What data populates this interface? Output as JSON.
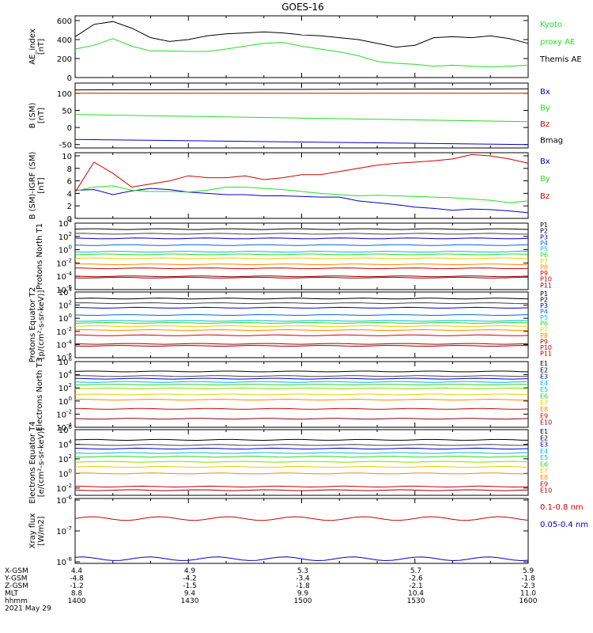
{
  "title": "GOES-16",
  "colors": {
    "black": "#000000",
    "red": "#d00000",
    "green": "#22dd22",
    "blue": "#0000cc",
    "cyan": "#00bbdd",
    "yellow": "#eecc00",
    "orange": "#ff8800",
    "darkred": "#990000"
  },
  "chart_data": [
    {
      "type": "line",
      "panel": "ae",
      "ylabel": "AE_index [nT]",
      "ylim": [
        0,
        650
      ],
      "yticks": [
        {
          "v": 600,
          "label": "600"
        },
        {
          "v": 400,
          "label": "400"
        },
        {
          "v": 200,
          "label": "200"
        },
        {
          "v": 0,
          "label": "0"
        }
      ],
      "x": [
        1400,
        1405,
        1410,
        1415,
        1420,
        1425,
        1430,
        1435,
        1440,
        1445,
        1450,
        1455,
        1500,
        1505,
        1510,
        1515,
        1520,
        1525,
        1530,
        1535,
        1540,
        1545,
        1550,
        1555,
        1600
      ],
      "series": [
        {
          "name": "Kyoto proxy AE",
          "color": "#22dd22",
          "values": [
            300,
            340,
            410,
            330,
            280,
            280,
            275,
            275,
            300,
            330,
            360,
            370,
            330,
            300,
            270,
            230,
            170,
            150,
            140,
            120,
            130,
            120,
            110,
            120,
            130
          ]
        },
        {
          "name": "Themis AE",
          "color": "#000000",
          "values": [
            430,
            560,
            590,
            520,
            420,
            380,
            400,
            440,
            460,
            470,
            480,
            470,
            450,
            440,
            420,
            400,
            360,
            320,
            340,
            420,
            430,
            420,
            440,
            410,
            360
          ]
        }
      ],
      "legend": [
        {
          "text": "Kyoto",
          "color": "#22dd22"
        },
        {
          "text": "proxy AE",
          "color": "#22dd22"
        },
        {
          "text": "Themis AE",
          "color": "#000000"
        }
      ]
    },
    {
      "type": "line",
      "panel": "bsm",
      "ylabel": "B (SM) [nT]",
      "ylim": [
        -60,
        130
      ],
      "yticks": [
        {
          "v": 100,
          "label": "100"
        },
        {
          "v": 50,
          "label": "50"
        },
        {
          "v": 0,
          "label": "0"
        },
        {
          "v": -50,
          "label": "-50"
        }
      ],
      "x": [
        1400,
        1600
      ],
      "series": [
        {
          "name": "Bx",
          "color": "#0000cc",
          "values": [
            -35,
            -50
          ]
        },
        {
          "name": "By",
          "color": "#22dd22",
          "values": [
            38,
            17
          ]
        },
        {
          "name": "Bz",
          "color": "#d00000",
          "values": [
            100,
            100
          ]
        },
        {
          "name": "Bmag",
          "color": "#000000",
          "values": [
            110,
            113
          ]
        }
      ],
      "legend": [
        {
          "text": "Bx",
          "color": "#0000cc"
        },
        {
          "text": "By",
          "color": "#22dd22"
        },
        {
          "text": "Bz",
          "color": "#d00000"
        },
        {
          "text": "Bmag",
          "color": "#000000"
        }
      ]
    },
    {
      "type": "line",
      "panel": "bigrf",
      "ylabel": "B (SM)-IGRF (SM) [nT]",
      "ylim": [
        0,
        10.5
      ],
      "yticks": [
        {
          "v": 10,
          "label": "10"
        },
        {
          "v": 8,
          "label": "8"
        },
        {
          "v": 6,
          "label": "6"
        },
        {
          "v": 4,
          "label": "4"
        },
        {
          "v": 2,
          "label": "2"
        },
        {
          "v": 0,
          "label": "0"
        }
      ],
      "x": [
        1400,
        1405,
        1410,
        1415,
        1420,
        1425,
        1430,
        1435,
        1440,
        1445,
        1450,
        1455,
        1500,
        1505,
        1510,
        1515,
        1520,
        1525,
        1530,
        1535,
        1540,
        1545,
        1550,
        1555,
        1600
      ],
      "series": [
        {
          "name": "Bx",
          "color": "#0000cc",
          "values": [
            4.5,
            4.6,
            3.8,
            4.4,
            4.8,
            4.6,
            4.2,
            4.0,
            3.8,
            3.8,
            3.6,
            3.6,
            3.5,
            3.4,
            3.4,
            2.8,
            2.5,
            2.2,
            1.8,
            1.6,
            1.3,
            1.5,
            1.4,
            1.2,
            0.9
          ]
        },
        {
          "name": "By",
          "color": "#22dd22",
          "values": [
            4.4,
            5.0,
            5.2,
            4.5,
            4.3,
            4.3,
            4.2,
            4.5,
            5.0,
            5.0,
            4.8,
            4.6,
            4.3,
            4.0,
            3.8,
            3.6,
            3.7,
            3.6,
            3.5,
            3.4,
            3.3,
            3.1,
            2.9,
            2.5,
            2.8
          ]
        },
        {
          "name": "Bz",
          "color": "#d00000",
          "values": [
            4.2,
            9.0,
            7.2,
            5.0,
            5.5,
            6.0,
            6.8,
            6.5,
            6.5,
            6.8,
            6.2,
            6.5,
            7.0,
            7.0,
            7.5,
            8.0,
            8.5,
            8.8,
            9.0,
            9.2,
            9.5,
            10.2,
            10.0,
            9.5,
            8.8
          ]
        }
      ],
      "legend": [
        {
          "text": "Bx",
          "color": "#0000cc"
        },
        {
          "text": "By",
          "color": "#22dd22"
        },
        {
          "text": "Bz",
          "color": "#d00000"
        }
      ]
    },
    {
      "type": "line",
      "panel": "protons-north",
      "scale": "log",
      "ylabel": "Protons North T1",
      "ylim": [
        -6,
        4
      ],
      "yticks": [
        {
          "exp": 4
        },
        {
          "exp": 2
        },
        {
          "exp": 0
        },
        {
          "exp": -2
        },
        {
          "exp": -4
        },
        {
          "exp": -6
        }
      ],
      "series": [
        {
          "name": "P1",
          "color": "#000000",
          "log10": 3.1
        },
        {
          "name": "P2",
          "color": "#444444",
          "log10": 2.4
        },
        {
          "name": "P3",
          "color": "#0000cc",
          "log10": 1.7
        },
        {
          "name": "P4",
          "color": "#0066dd",
          "log10": 0.7
        },
        {
          "name": "P5",
          "color": "#00bbdd",
          "log10": -0.3
        },
        {
          "name": "P6",
          "color": "#22dd22",
          "log10": -0.7
        },
        {
          "name": "P7",
          "color": "#eecc00",
          "log10": -1.3
        },
        {
          "name": "P8",
          "color": "#ff8800",
          "log10": -2.2
        },
        {
          "name": "P9",
          "color": "#d00000",
          "log10": -2.8
        },
        {
          "name": "P10",
          "color": "#990000",
          "log10": -4.0
        },
        {
          "name": "P11",
          "color": "#990000",
          "log10": -4.2
        }
      ],
      "legend": [
        {
          "text": "P1",
          "color": "#000000"
        },
        {
          "text": "P2",
          "color": "#000000"
        },
        {
          "text": "P3",
          "color": "#0000cc"
        },
        {
          "text": "P4",
          "color": "#0066dd"
        },
        {
          "text": "P5",
          "color": "#00bbdd"
        },
        {
          "text": "P6",
          "color": "#22dd22"
        },
        {
          "text": "P7",
          "color": "#eecc00"
        },
        {
          "text": "P8",
          "color": "#ff8800"
        },
        {
          "text": "P9",
          "color": "#d00000"
        },
        {
          "text": "P10",
          "color": "#d00000"
        },
        {
          "text": "P11",
          "color": "#990000"
        }
      ]
    },
    {
      "type": "line",
      "panel": "protons-equator",
      "scale": "log",
      "ylabel": "Protons Equator T2 [p/(cm²-s-sr-keV)]",
      "ylim": [
        -6,
        4
      ],
      "yticks": [
        {
          "exp": 4
        },
        {
          "exp": 2
        },
        {
          "exp": 0
        },
        {
          "exp": -2
        },
        {
          "exp": -4
        },
        {
          "exp": -6
        }
      ],
      "series": [
        {
          "name": "P1",
          "color": "#000000",
          "log10": 3.0
        },
        {
          "name": "P2",
          "color": "#444444",
          "log10": 2.3
        },
        {
          "name": "P3",
          "color": "#0000cc",
          "log10": 1.6
        },
        {
          "name": "P4",
          "color": "#0066dd",
          "log10": 0.5
        },
        {
          "name": "P5",
          "color": "#00bbdd",
          "log10": -0.4
        },
        {
          "name": "P6",
          "color": "#22dd22",
          "log10": -0.7
        },
        {
          "name": "P7",
          "color": "#eecc00",
          "log10": -1.2
        },
        {
          "name": "P8",
          "color": "#ff8800",
          "log10": -1.8
        },
        {
          "name": "P9",
          "color": "#d00000",
          "log10": -2.6
        },
        {
          "name": "P10",
          "color": "#990000",
          "log10": -3.9
        },
        {
          "name": "P11",
          "color": "#990000",
          "log10": -4.2
        }
      ],
      "legend": [
        {
          "text": "P1",
          "color": "#000000"
        },
        {
          "text": "P2",
          "color": "#000000"
        },
        {
          "text": "P3",
          "color": "#0000cc"
        },
        {
          "text": "P4",
          "color": "#0066dd"
        },
        {
          "text": "P5",
          "color": "#00bbdd"
        },
        {
          "text": "P6",
          "color": "#22dd22"
        },
        {
          "text": "P7",
          "color": "#eecc00"
        },
        {
          "text": "P8",
          "color": "#ff8800"
        },
        {
          "text": "P9",
          "color": "#d00000"
        },
        {
          "text": "P10",
          "color": "#d00000"
        },
        {
          "text": "P11",
          "color": "#990000"
        }
      ]
    },
    {
      "type": "line",
      "panel": "electrons-north",
      "scale": "log",
      "ylabel": "Electrons North T3",
      "ylim": [
        -4,
        6
      ],
      "yticks": [
        {
          "exp": 6
        },
        {
          "exp": 4
        },
        {
          "exp": 2
        },
        {
          "exp": 0
        },
        {
          "exp": -2
        },
        {
          "exp": -4
        }
      ],
      "series": [
        {
          "name": "E1",
          "color": "#000000",
          "log10": 4.5
        },
        {
          "name": "E2",
          "color": "#444444",
          "log10": 3.8
        },
        {
          "name": "E3",
          "color": "#0000cc",
          "log10": 3.4
        },
        {
          "name": "E4",
          "color": "#00bbdd",
          "log10": 2.9
        },
        {
          "name": "E5",
          "color": "#22dd22",
          "log10": 2.5
        },
        {
          "name": "E6",
          "color": "#88dd00",
          "log10": 1.9
        },
        {
          "name": "E7",
          "color": "#eecc00",
          "log10": 1.0
        },
        {
          "name": "E8",
          "color": "#ff8800",
          "log10": 0.2
        },
        {
          "name": "E9",
          "color": "#d00000",
          "log10": -1.2
        },
        {
          "name": "E10",
          "color": "#990000",
          "log10": -2.7
        }
      ],
      "legend": [
        {
          "text": "E1",
          "color": "#000000"
        },
        {
          "text": "E2",
          "color": "#000000"
        },
        {
          "text": "E3",
          "color": "#0000cc"
        },
        {
          "text": "E4",
          "color": "#00bbdd"
        },
        {
          "text": "E5",
          "color": "#00bbdd"
        },
        {
          "text": "E6",
          "color": "#22dd22"
        },
        {
          "text": "E7",
          "color": "#eecc00"
        },
        {
          "text": "E8",
          "color": "#ff8800"
        },
        {
          "text": "E9",
          "color": "#d00000"
        },
        {
          "text": "E10",
          "color": "#990000"
        }
      ]
    },
    {
      "type": "line",
      "panel": "electrons-equator",
      "scale": "log",
      "ylabel": "Electrons Equator T4 [e/(cm²-s-sr-keV)]",
      "ylim": [
        -3,
        6
      ],
      "yticks": [
        {
          "exp": 6
        },
        {
          "exp": 4
        },
        {
          "exp": 2
        },
        {
          "exp": 0
        },
        {
          "exp": -2
        }
      ],
      "series": [
        {
          "name": "E1",
          "color": "#000000",
          "log10": 4.6
        },
        {
          "name": "E2",
          "color": "#444444",
          "log10": 3.9
        },
        {
          "name": "E3",
          "color": "#0000cc",
          "log10": 3.4
        },
        {
          "name": "E4",
          "color": "#00bbdd",
          "log10": 2.8
        },
        {
          "name": "E5",
          "color": "#22dd22",
          "log10": 2.3
        },
        {
          "name": "E6",
          "color": "#88dd00",
          "log10": 1.6
        },
        {
          "name": "E7",
          "color": "#eecc00",
          "log10": 0.9
        },
        {
          "name": "E8",
          "color": "#ff8800",
          "log10": 0.0
        },
        {
          "name": "E9",
          "color": "#d00000",
          "log10": -1.8
        },
        {
          "name": "E10",
          "color": "#990000",
          "log10": -2.3
        }
      ],
      "legend": [
        {
          "text": "E1",
          "color": "#000000"
        },
        {
          "text": "E2",
          "color": "#000000"
        },
        {
          "text": "E3",
          "color": "#0000cc"
        },
        {
          "text": "E4",
          "color": "#00bbdd"
        },
        {
          "text": "E5",
          "color": "#00bbdd"
        },
        {
          "text": "E6",
          "color": "#22dd22"
        },
        {
          "text": "E7",
          "color": "#eecc00"
        },
        {
          "text": "E8",
          "color": "#ff8800"
        },
        {
          "text": "E9",
          "color": "#d00000"
        },
        {
          "text": "E10",
          "color": "#990000"
        }
      ]
    },
    {
      "type": "line",
      "panel": "xray",
      "scale": "log",
      "ylabel": "Xray flux [W/m2]",
      "ylim": [
        -8.05,
        -5.95
      ],
      "yticks": [
        {
          "exp": -6
        },
        {
          "exp": -7
        },
        {
          "exp": -8
        }
      ],
      "series": [
        {
          "name": "0.1-0.8 nm",
          "color": "#d00000",
          "log10": -6.6
        },
        {
          "name": "0.05-0.4 nm",
          "color": "#0000cc",
          "log10": -7.9
        }
      ],
      "legend": [
        {
          "text": "0.1-0.8 nm",
          "color": "#d00000"
        },
        {
          "text": "0.05-0.4 nm",
          "color": "#0000cc"
        }
      ]
    }
  ],
  "x_axis": {
    "row_labels": [
      "X-GSM",
      "Y-GSM",
      "Z-GSM",
      "MLT",
      "hhmm"
    ],
    "columns": [
      {
        "vals": [
          "4.4",
          "-4.8",
          "-1.2",
          "8.8",
          "1400"
        ]
      },
      {
        "vals": [
          "4.9",
          "-4.2",
          "-1.5",
          "9.4",
          "1430"
        ]
      },
      {
        "vals": [
          "5.3",
          "-3.4",
          "-1.8",
          "9.9",
          "1500"
        ]
      },
      {
        "vals": [
          "5.7",
          "-2.6",
          "-2.1",
          "10.4",
          "1530"
        ]
      },
      {
        "vals": [
          "5.9",
          "-1.8",
          "-2.3",
          "11.0",
          "1600"
        ]
      }
    ],
    "date": "2021 May 29"
  }
}
